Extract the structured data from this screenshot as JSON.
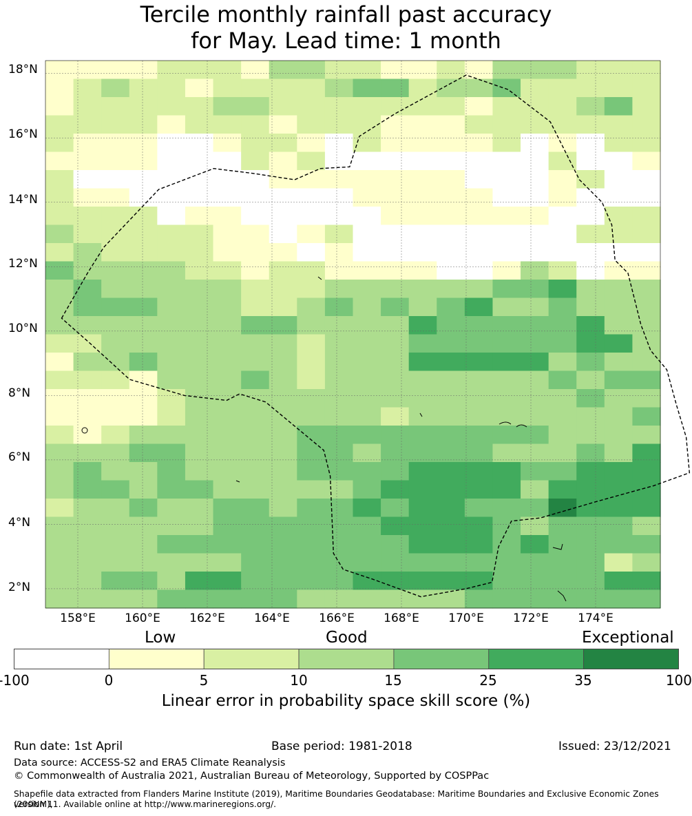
{
  "title": {
    "line1": "Tercile monthly rainfall past accuracy",
    "line2": "for May. Lead time: 1 month"
  },
  "map": {
    "lat_labels": [
      "18°N",
      "16°N",
      "14°N",
      "12°N",
      "10°N",
      "8°N",
      "6°N",
      "4°N",
      "2°N"
    ],
    "lon_labels": [
      "158°E",
      "160°E",
      "162°E",
      "164°E",
      "166°E",
      "168°E",
      "170°E",
      "172°E",
      "174°E"
    ],
    "lat_range": [
      1.4,
      18.4
    ],
    "lon_range": [
      157.0,
      176.0
    ],
    "grid_rows": [
      "1111222133221121333222",
      "1232212222344233422222",
      "1222223322222221222342",
      "2222122212221112222222",
      "2111001221021111201022",
      "1111000212000000002001",
      "2000000011111110001200",
      "2110000000011111001000",
      "2222011000001111110022",
      "3222221101200000000222",
      "2322221110100000000000",
      "4333322122111100132011",
      "3433333222333333445333",
      "3444333223434345334333",
      "3333333443333544444533",
      "2233333332333444444553",
      "1334333332333555553433",
      "2221333432333333334344",
      "1111233333333333333433",
      "1111233333332333333334",
      "2123333334444444443333",
      "3334433334434444333435",
      "3433433334444555544555",
      "3443443333345555535555",
      "2334334434454554446555",
      "3333334444445555434443",
      "3333444444444555454444",
      "3333333444444444444423",
      "3344355444455555444455",
      "3333444443333334444444"
    ],
    "grid_colors": [
      "#ffffff",
      "#ffffcc",
      "#d9f0a3",
      "#addd8e",
      "#78c679",
      "#41ab5d",
      "#238443"
    ],
    "eez_boundary": [
      [
        157.5,
        10.4
      ],
      [
        158.3,
        11.8
      ],
      [
        158.8,
        12.6
      ],
      [
        160.5,
        14.4
      ],
      [
        162.2,
        15.05
      ],
      [
        163.4,
        14.9
      ],
      [
        164.7,
        14.7
      ],
      [
        165.5,
        15.05
      ],
      [
        166.4,
        15.1
      ],
      [
        166.7,
        16.05
      ],
      [
        167.8,
        16.75
      ],
      [
        170.0,
        17.95
      ],
      [
        171.3,
        17.5
      ],
      [
        172.6,
        16.5
      ],
      [
        173.5,
        14.7
      ],
      [
        174.2,
        14.0
      ],
      [
        174.5,
        13.3
      ],
      [
        174.6,
        12.2
      ],
      [
        175.0,
        11.8
      ],
      [
        175.4,
        10.2
      ],
      [
        175.7,
        9.4
      ],
      [
        176.2,
        8.8
      ],
      [
        176.5,
        7.7
      ],
      [
        176.8,
        6.7
      ],
      [
        176.9,
        5.6
      ],
      [
        175.8,
        5.2
      ],
      [
        174.0,
        4.7
      ],
      [
        172.3,
        4.2
      ],
      [
        171.4,
        4.1
      ],
      [
        171.0,
        3.3
      ],
      [
        170.8,
        2.2
      ],
      [
        170.0,
        2.0
      ],
      [
        168.6,
        1.75
      ],
      [
        167.1,
        2.3
      ],
      [
        166.2,
        2.6
      ],
      [
        165.9,
        3.1
      ],
      [
        165.8,
        5.5
      ],
      [
        165.6,
        6.3
      ],
      [
        165.0,
        6.8
      ],
      [
        163.8,
        7.8
      ],
      [
        163.0,
        8.05
      ],
      [
        162.6,
        7.85
      ],
      [
        161.3,
        8.0
      ],
      [
        159.6,
        8.5
      ],
      [
        158.4,
        9.6
      ],
      [
        157.5,
        10.4
      ]
    ]
  },
  "colorbar": {
    "category_labels": [
      "Low",
      "Good",
      "Exceptional"
    ],
    "tick_labels": [
      "-100",
      "0",
      "5",
      "10",
      "15",
      "25",
      "35",
      "100"
    ],
    "colors": [
      "#ffffff",
      "#ffffcc",
      "#d9f0a3",
      "#addd8e",
      "#78c679",
      "#41ab5d",
      "#238443"
    ],
    "label": "Linear error in probability space skill score (%)"
  },
  "footer": {
    "run_date": "Run date: 1st April",
    "base_period": "Base period: 1981-2018",
    "issued": "Issued: 23/12/2021",
    "data_source": "Data source: ACCESS-S2 and ERA5 Climate Reanalysis",
    "copyright": "© Commonwealth of Australia 2021, Australian Bureau of Meteorology, Supported by COSPPac",
    "shapefile_line1": "Shapefile data extracted from Flanders Marine Institute (2019), Maritime Boundaries Geodatabase: Maritime Boundaries and Exclusive Economic Zones (200NM),",
    "shapefile_line2": "version 11. Available online at http://www.marineregions.org/."
  }
}
